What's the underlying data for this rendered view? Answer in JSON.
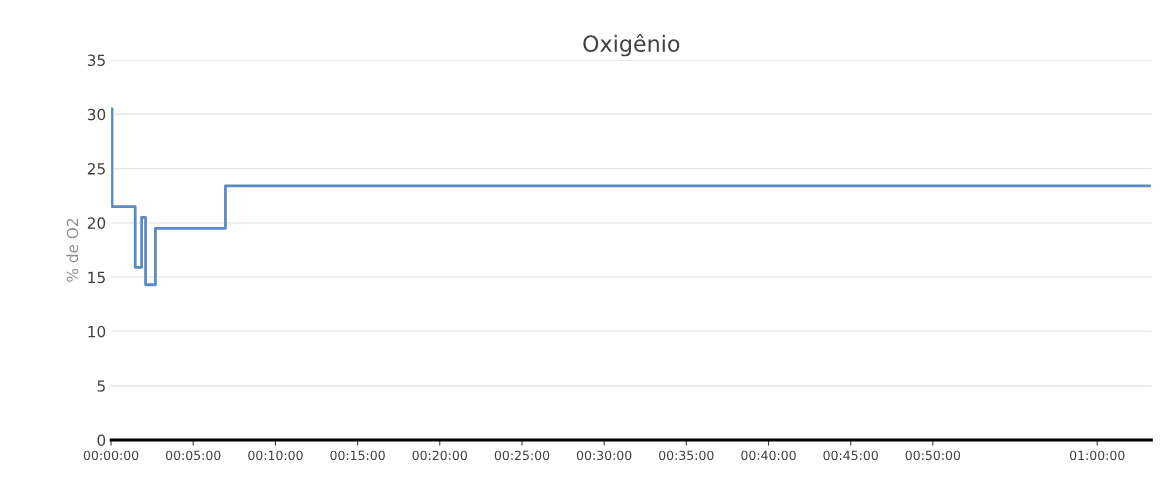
{
  "chart_data": {
    "type": "step",
    "title": "Oxigênio",
    "ylabel": "% de O2",
    "x": [
      0,
      0.001,
      0.0245,
      0.031,
      0.035,
      0.045,
      0.116,
      1.053
    ],
    "series": [
      {
        "color": "#5b8bc4",
        "values": [
          30.5,
          21.5,
          15.9,
          20.5,
          14.3,
          19.5,
          23.4,
          23.4
        ]
      }
    ],
    "xlim": [
      0,
      1.055
    ],
    "xticks": [
      {
        "value": 0,
        "label": "00:00:00"
      },
      {
        "value": 0.0833,
        "label": "00:05:00"
      },
      {
        "value": 0.1667,
        "label": "00:10:00"
      },
      {
        "value": 0.25,
        "label": "00:15:00"
      },
      {
        "value": 0.3333,
        "label": "00:20:00"
      },
      {
        "value": 0.4167,
        "label": "00:25:00"
      },
      {
        "value": 0.5,
        "label": "00:30:00"
      },
      {
        "value": 0.5833,
        "label": "00:35:00"
      },
      {
        "value": 0.6667,
        "label": "00:40:00"
      },
      {
        "value": 0.75,
        "label": "00:45:00"
      },
      {
        "value": 0.8333,
        "label": "00:50:00"
      },
      {
        "value": 1,
        "label": "01:00:00"
      }
    ],
    "ylim": [
      0,
      35
    ],
    "yticks": [
      0,
      5,
      10,
      15,
      20,
      25,
      30,
      35
    ],
    "grid": "y",
    "legend": false,
    "line_style": "solid",
    "marker": "none"
  }
}
